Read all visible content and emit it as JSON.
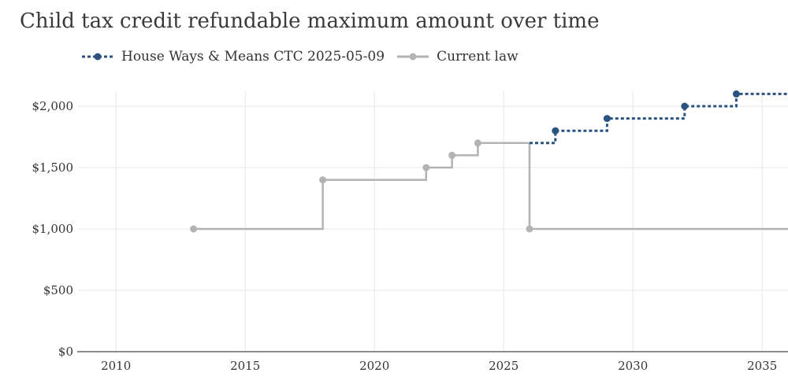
{
  "chart_data": {
    "type": "line",
    "title": "Child tax credit refundable maximum amount over time",
    "xlabel": "",
    "ylabel": "",
    "xlim": [
      2008.5,
      2036
    ],
    "ylim": [
      0,
      2000
    ],
    "x_ticks": [
      2010,
      2015,
      2020,
      2025,
      2030,
      2035
    ],
    "y_ticks": [
      {
        "value": 0,
        "label": "$0"
      },
      {
        "value": 500,
        "label": "$500"
      },
      {
        "value": 1000,
        "label": "$1,000"
      },
      {
        "value": 1500,
        "label": "$1,500"
      },
      {
        "value": 2000,
        "label": "$2,000"
      }
    ],
    "grid": true,
    "legend_position": "top-left",
    "step": true,
    "series": [
      {
        "name": "House Ways & Means CTC 2025-05-09",
        "color": "#2b5380",
        "style": "dotted",
        "points": [
          {
            "x": 2026,
            "y": 1700
          },
          {
            "x": 2027,
            "y": 1800
          },
          {
            "x": 2029,
            "y": 1900
          },
          {
            "x": 2032,
            "y": 2000
          },
          {
            "x": 2034,
            "y": 2100
          },
          {
            "x": 2036,
            "y": 2100
          }
        ],
        "markers_on": [
          2027,
          2029,
          2032,
          2034
        ]
      },
      {
        "name": "Current law",
        "color": "#b3b3b3",
        "style": "solid",
        "points": [
          {
            "x": 2013,
            "y": 1000
          },
          {
            "x": 2018,
            "y": 1400
          },
          {
            "x": 2022,
            "y": 1500
          },
          {
            "x": 2023,
            "y": 1600
          },
          {
            "x": 2024,
            "y": 1700
          },
          {
            "x": 2026,
            "y": 1000
          },
          {
            "x": 2036,
            "y": 1000
          }
        ],
        "markers_on": [
          2013,
          2018,
          2022,
          2023,
          2024,
          2026
        ]
      }
    ]
  }
}
